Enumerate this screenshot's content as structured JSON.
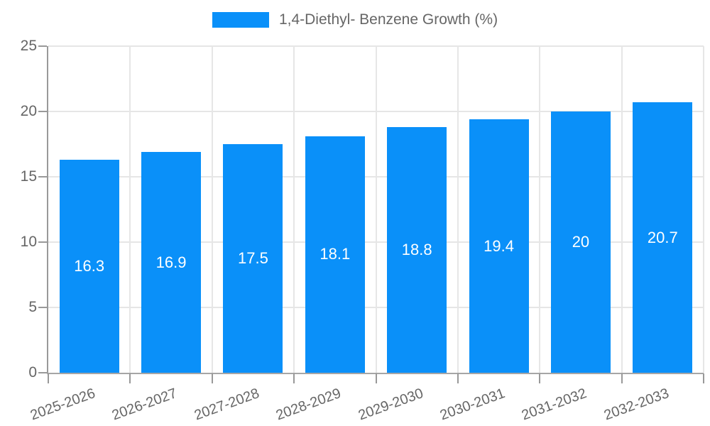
{
  "legend": {
    "label": "1,4-Diethyl- Benzene Growth (%)",
    "swatch_color": "#0a90f9"
  },
  "chart_data": {
    "type": "bar",
    "title": "1,4-Diethyl- Benzene Growth (%)",
    "categories": [
      "2025-2026",
      "2026-2027",
      "2027-2028",
      "2028-2029",
      "2029-2030",
      "2030-2031",
      "2031-2032",
      "2032-2033"
    ],
    "values": [
      16.3,
      16.9,
      17.5,
      18.1,
      18.8,
      19.4,
      20,
      20.7
    ],
    "bar_labels": [
      "16.3",
      "16.9",
      "17.5",
      "18.1",
      "18.8",
      "19.4",
      "20",
      "20.7"
    ],
    "xlabel": "",
    "ylabel": "",
    "ylim": [
      0,
      25
    ],
    "yticks": [
      0,
      5,
      10,
      15,
      20,
      25
    ],
    "grid": true,
    "legend_position": "top-center",
    "bar_color": "#0a90f9",
    "bar_label_color": "#ffffff",
    "axis_color": "#999999",
    "grid_color": "#e6e6e6",
    "tick_text_color": "#666666"
  }
}
